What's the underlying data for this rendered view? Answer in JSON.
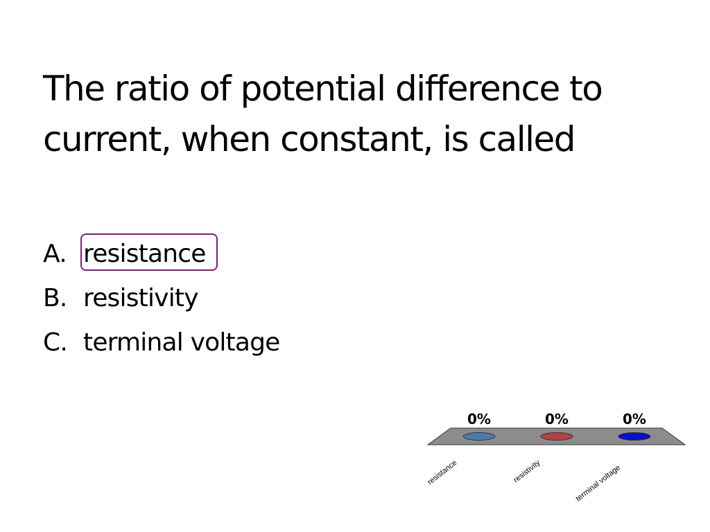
{
  "slide": {
    "title": "The ratio of potential difference to current, when constant, is called",
    "options": [
      {
        "letter": "A.",
        "text": "resistance",
        "selected": true
      },
      {
        "letter": "B.",
        "text": "resistivity",
        "selected": false
      },
      {
        "letter": "C.",
        "text": "terminal voltage",
        "selected": false
      }
    ],
    "selection_color": "#7a1f7a"
  },
  "chart_data": {
    "type": "bar",
    "title": "",
    "categories": [
      "resistance",
      "resistivity",
      "terminal voltage"
    ],
    "values": [
      0,
      0,
      0
    ],
    "value_labels": [
      "0%",
      "0%",
      "0%"
    ],
    "colors": [
      "#4a7ab0",
      "#b04444",
      "#0a10c8"
    ],
    "xlabel": "",
    "ylabel": "",
    "ylim": [
      0,
      100
    ],
    "grid": false,
    "legend": "none",
    "floor_color": "#8c8c8c"
  }
}
